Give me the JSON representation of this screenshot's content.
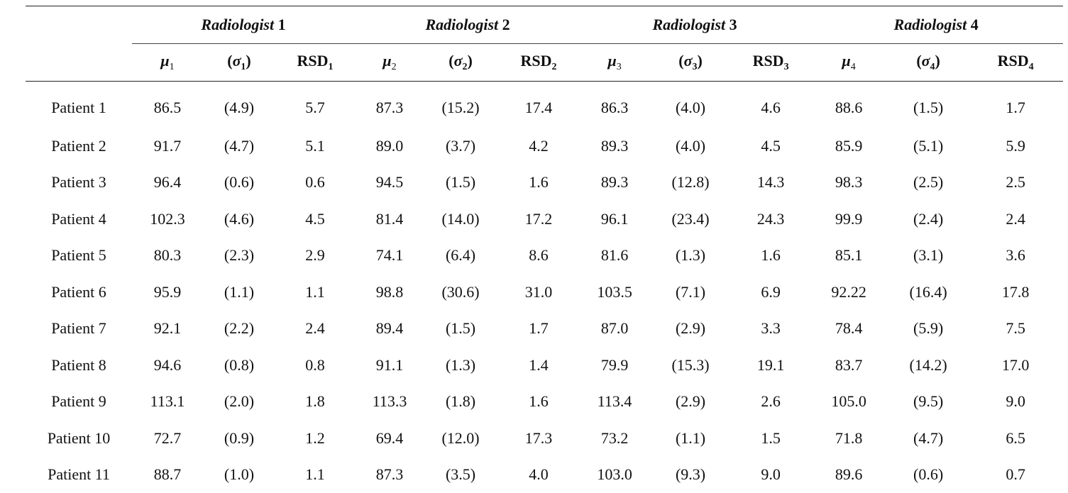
{
  "header": {
    "radiologists": [
      {
        "name": "Radiologist",
        "num": "1"
      },
      {
        "name": "Radiologist",
        "num": "2"
      },
      {
        "name": "Radiologist",
        "num": "3"
      },
      {
        "name": "Radiologist",
        "num": "4"
      }
    ],
    "columns": [
      {
        "mu": "μ",
        "sigma": "σ",
        "rsd": "RSD",
        "sub": "1"
      },
      {
        "mu": "μ",
        "sigma": "σ",
        "rsd": "RSD",
        "sub": "2"
      },
      {
        "mu": "μ",
        "sigma": "σ",
        "rsd": "RSD",
        "sub": "3"
      },
      {
        "mu": "μ",
        "sigma": "σ",
        "rsd": "RSD",
        "sub": "4"
      }
    ]
  },
  "rows": [
    {
      "patient": "Patient 1",
      "cells": [
        "86.5",
        "(4.9)",
        "5.7",
        "87.3",
        "(15.2)",
        "17.4",
        "86.3",
        "(4.0)",
        "4.6",
        "88.6",
        "(1.5)",
        "1.7"
      ]
    },
    {
      "patient": "Patient 2",
      "cells": [
        "91.7",
        "(4.7)",
        "5.1",
        "89.0",
        "(3.7)",
        "4.2",
        "89.3",
        "(4.0)",
        "4.5",
        "85.9",
        "(5.1)",
        "5.9"
      ]
    },
    {
      "patient": "Patient 3",
      "cells": [
        "96.4",
        "(0.6)",
        "0.6",
        "94.5",
        "(1.5)",
        "1.6",
        "89.3",
        "(12.8)",
        "14.3",
        "98.3",
        "(2.5)",
        "2.5"
      ]
    },
    {
      "patient": "Patient 4",
      "cells": [
        "102.3",
        "(4.6)",
        "4.5",
        "81.4",
        "(14.0)",
        "17.2",
        "96.1",
        "(23.4)",
        "24.3",
        "99.9",
        "(2.4)",
        "2.4"
      ]
    },
    {
      "patient": "Patient 5",
      "cells": [
        "80.3",
        "(2.3)",
        "2.9",
        "74.1",
        "(6.4)",
        "8.6",
        "81.6",
        "(1.3)",
        "1.6",
        "85.1",
        "(3.1)",
        "3.6"
      ]
    },
    {
      "patient": "Patient 6",
      "cells": [
        "95.9",
        "(1.1)",
        "1.1",
        "98.8",
        "(30.6)",
        "31.0",
        "103.5",
        "(7.1)",
        "6.9",
        "92.22",
        "(16.4)",
        "17.8"
      ]
    },
    {
      "patient": "Patient 7",
      "cells": [
        "92.1",
        "(2.2)",
        "2.4",
        "89.4",
        "(1.5)",
        "1.7",
        "87.0",
        "(2.9)",
        "3.3",
        "78.4",
        "(5.9)",
        "7.5"
      ]
    },
    {
      "patient": "Patient 8",
      "cells": [
        "94.6",
        "(0.8)",
        "0.8",
        "91.1",
        "(1.3)",
        "1.4",
        "79.9",
        "(15.3)",
        "19.1",
        "83.7",
        "(14.2)",
        "17.0"
      ]
    },
    {
      "patient": "Patient 9",
      "cells": [
        "113.1",
        "(2.0)",
        "1.8",
        "113.3",
        "(1.8)",
        "1.6",
        "113.4",
        "(2.9)",
        "2.6",
        "105.0",
        "(9.5)",
        "9.0"
      ]
    },
    {
      "patient": "Patient 10",
      "cells": [
        "72.7",
        "(0.9)",
        "1.2",
        "69.4",
        "(12.0)",
        "17.3",
        "73.2",
        "(1.1)",
        "1.5",
        "71.8",
        "(4.7)",
        "6.5"
      ]
    },
    {
      "patient": "Patient 11",
      "cells": [
        "88.7",
        "(1.0)",
        "1.1",
        "87.3",
        "(3.5)",
        "4.0",
        "103.0",
        "(9.3)",
        "9.0",
        "89.6",
        "(0.6)",
        "0.7"
      ]
    }
  ]
}
